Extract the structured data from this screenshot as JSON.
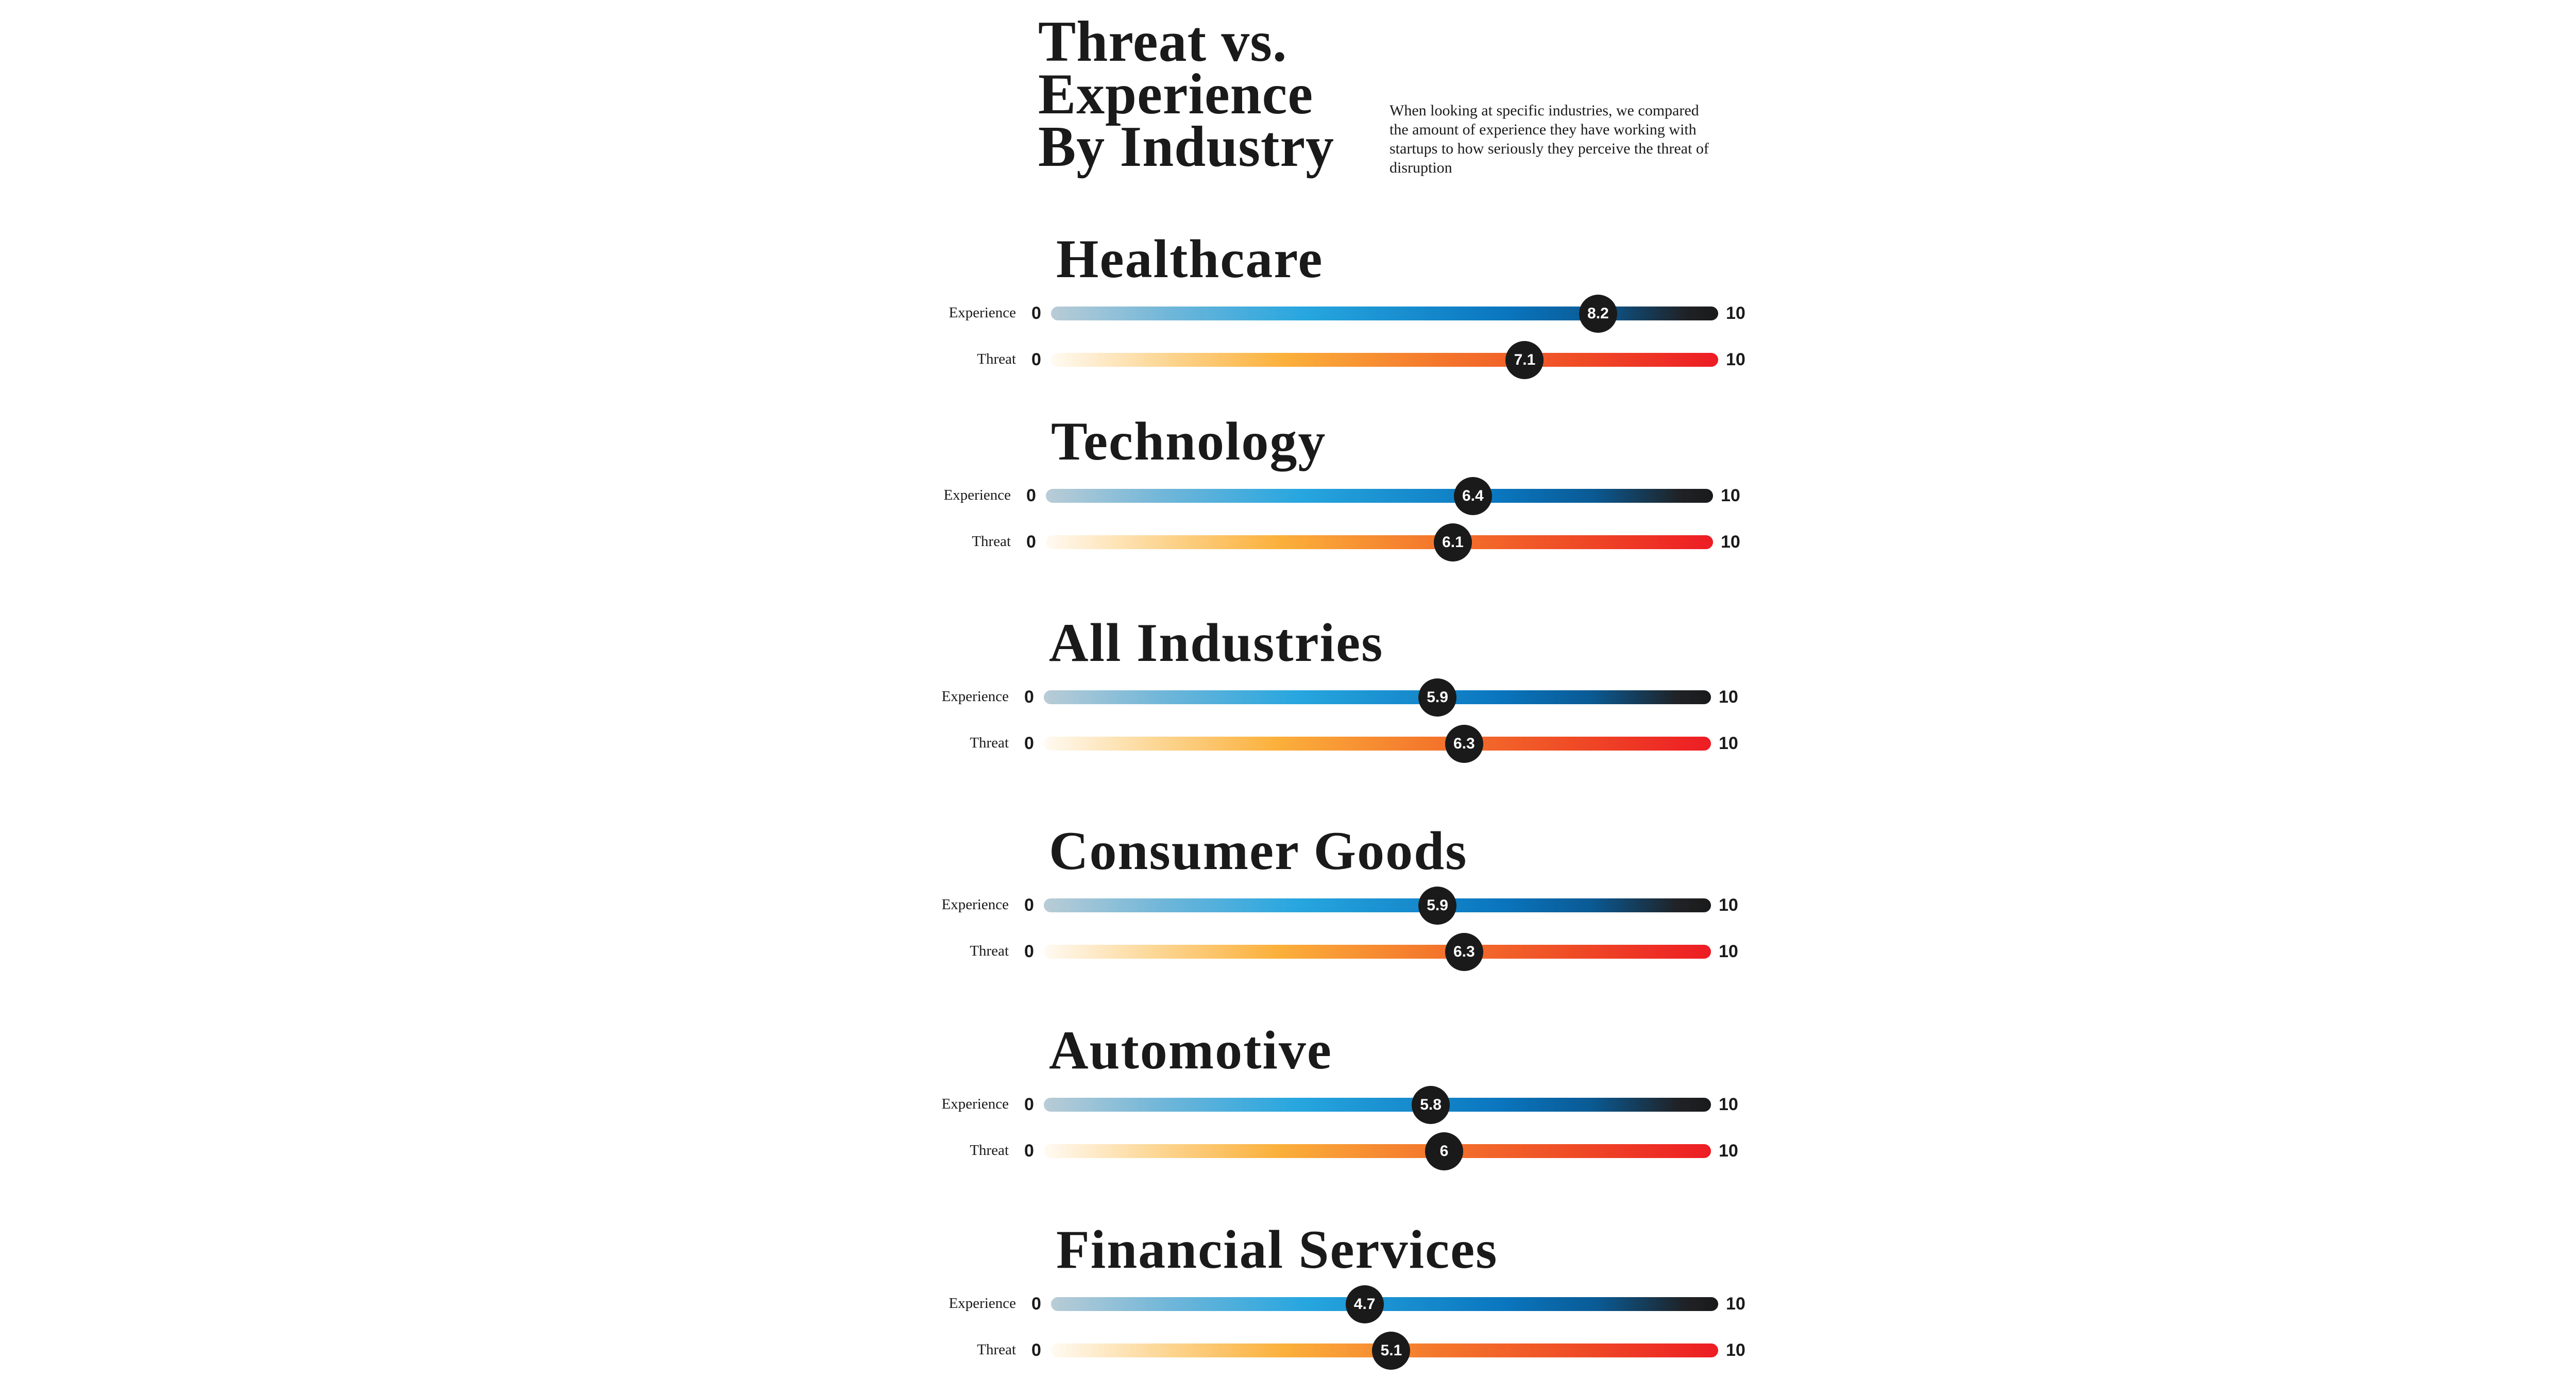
{
  "title_lines": [
    "Threat vs.",
    "Experience",
    "By Industry"
  ],
  "description": "When looking at specific industries, we compared the amount of experience they have working with startups to how seriously they perceive the threat of disruption",
  "chart_data": {
    "type": "bar",
    "title": "Threat vs. Experience By Industry",
    "scale": {
      "min": 0,
      "max": 10,
      "min_label": "0",
      "max_label": "10"
    },
    "series_labels": {
      "experience": "Experience",
      "threat": "Threat"
    },
    "colors": {
      "marker": "#1a1a1a",
      "experience_end": "#0071bb",
      "threat_end": "#ed1c24"
    },
    "categories": [
      {
        "name": "Healthcare",
        "experience": 8.2,
        "experience_label": "8.2",
        "threat": 7.1,
        "threat_label": "7.1"
      },
      {
        "name": "Technology",
        "experience": 6.4,
        "experience_label": "6.4",
        "threat": 6.1,
        "threat_label": "6.1"
      },
      {
        "name": "All Industries",
        "experience": 5.9,
        "experience_label": "5.9",
        "threat": 6.3,
        "threat_label": "6.3"
      },
      {
        "name": "Consumer Goods",
        "experience": 5.9,
        "experience_label": "5.9",
        "threat": 6.3,
        "threat_label": "6.3"
      },
      {
        "name": "Automotive",
        "experience": 5.8,
        "experience_label": "5.8",
        "threat": 6,
        "threat_label": "6"
      },
      {
        "name": "Financial Services",
        "experience": 4.7,
        "experience_label": "4.7",
        "threat": 5.1,
        "threat_label": "5.1"
      }
    ]
  }
}
